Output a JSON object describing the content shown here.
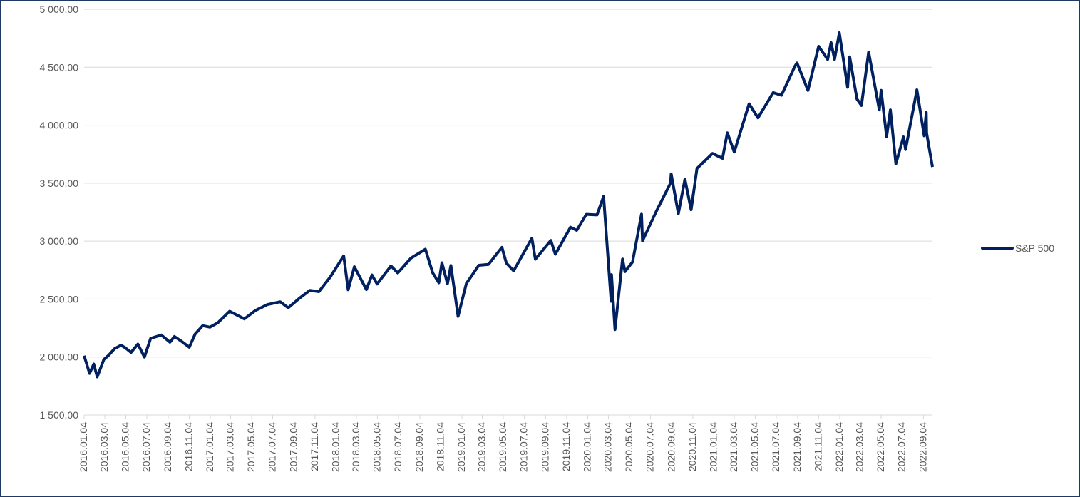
{
  "chart_data": {
    "type": "line",
    "x": [
      "2016.01.04",
      "2016.01.20",
      "2016.02.01",
      "2016.02.11",
      "2016.03.01",
      "2016.03.15",
      "2016.04.01",
      "2016.04.20",
      "2016.05.02",
      "2016.05.19",
      "2016.06.08",
      "2016.06.27",
      "2016.07.15",
      "2016.08.15",
      "2016.09.09",
      "2016.09.22",
      "2016.10.14",
      "2016.11.04",
      "2016.11.21",
      "2016.12.13",
      "2017.01.03",
      "2017.01.26",
      "2017.03.01",
      "2017.04.13",
      "2017.05.15",
      "2017.06.19",
      "2017.07.26",
      "2017.08.18",
      "2017.09.20",
      "2017.10.20",
      "2017.11.15",
      "2017.12.18",
      "2018.01.26",
      "2018.02.08",
      "2018.02.26",
      "2018.04.02",
      "2018.04.18",
      "2018.05.03",
      "2018.06.12",
      "2018.07.02",
      "2018.08.09",
      "2018.09.20",
      "2018.10.11",
      "2018.10.29",
      "2018.11.07",
      "2018.11.23",
      "2018.12.03",
      "2018.12.24",
      "2019.01.17",
      "2019.02.22",
      "2019.03.22",
      "2019.04.30",
      "2019.05.13",
      "2019.06.03",
      "2019.07.26",
      "2019.08.05",
      "2019.09.19",
      "2019.10.02",
      "2019.11.15",
      "2019.12.03",
      "2019.12.31",
      "2020.01.31",
      "2020.02.19",
      "2020.03.12",
      "2020.03.13",
      "2020.03.23",
      "2020.04.14",
      "2020.04.21",
      "2020.05.13",
      "2020.06.08",
      "2020.06.11",
      "2020.07.20",
      "2020.08.31",
      "2020.09.02",
      "2020.09.23",
      "2020.10.12",
      "2020.10.30",
      "2020.11.16",
      "2020.12.31",
      "2021.01.29",
      "2021.02.12",
      "2021.03.04",
      "2021.04.16",
      "2021.05.12",
      "2021.06.25",
      "2021.07.19",
      "2021.08.27",
      "2021.09.02",
      "2021.10.04",
      "2021.11.04",
      "2021.11.30",
      "2021.12.10",
      "2021.12.20",
      "2022.01.03",
      "2022.01.27",
      "2022.02.02",
      "2022.02.23",
      "2022.03.08",
      "2022.03.29",
      "2022.04.29",
      "2022.05.04",
      "2022.05.20",
      "2022.05.31",
      "2022.06.16",
      "2022.07.08",
      "2022.07.14",
      "2022.08.16",
      "2022.09.06",
      "2022.09.12",
      "2022.09.13",
      "2022.09.30"
    ],
    "series": [
      {
        "name": "S&P 500",
        "color": "#002060",
        "values": [
          2012,
          1859,
          1940,
          1829,
          1978,
          2015,
          2072,
          2102,
          2081,
          2040,
          2112,
          2000,
          2161,
          2190,
          2128,
          2177,
          2133,
          2085,
          2198,
          2271,
          2258,
          2296,
          2395,
          2329,
          2402,
          2453,
          2477,
          2425,
          2508,
          2575,
          2564,
          2690,
          2873,
          2581,
          2779,
          2582,
          2708,
          2630,
          2786,
          2726,
          2853,
          2930,
          2728,
          2641,
          2813,
          2633,
          2790,
          2351,
          2635,
          2792,
          2800,
          2946,
          2811,
          2744,
          3025,
          2844,
          3006,
          2887,
          3120,
          3093,
          3231,
          3226,
          3386,
          2481,
          2711,
          2237,
          2846,
          2737,
          2820,
          3232,
          3002,
          3251,
          3500,
          3580,
          3237,
          3534,
          3270,
          3627,
          3756,
          3714,
          3934,
          3768,
          4185,
          4063,
          4281,
          4258,
          4509,
          4537,
          4300,
          4680,
          4567,
          4712,
          4568,
          4797,
          4327,
          4590,
          4226,
          4170,
          4631,
          4132,
          4300,
          3901,
          4132,
          3667,
          3899,
          3790,
          4305,
          3909,
          4110,
          3932,
          3640
        ]
      }
    ],
    "xlim": [
      "2016.01.04",
      "2022.09.30"
    ],
    "xticks": [
      "2016.01.04",
      "2016.03.04",
      "2016.05.04",
      "2016.07.04",
      "2016.09.04",
      "2016.11.04",
      "2017.01.04",
      "2017.03.04",
      "2017.05.04",
      "2017.07.04",
      "2017.09.04",
      "2017.11.04",
      "2018.01.04",
      "2018.03.04",
      "2018.05.04",
      "2018.07.04",
      "2018.09.04",
      "2018.11.04",
      "2019.01.04",
      "2019.03.04",
      "2019.05.04",
      "2019.07.04",
      "2019.09.04",
      "2019.11.04",
      "2020.01.04",
      "2020.03.04",
      "2020.05.04",
      "2020.07.04",
      "2020.09.04",
      "2020.11.04",
      "2021.01.04",
      "2021.03.04",
      "2021.05.04",
      "2021.07.04",
      "2021.09.04",
      "2021.11.04",
      "2022.01.04",
      "2022.03.04",
      "2022.05.04",
      "2022.07.04",
      "2022.09.04"
    ],
    "ylim": [
      1500,
      5000
    ],
    "yticks": [
      {
        "value": 1500,
        "label": "1 500,00"
      },
      {
        "value": 2000,
        "label": "2 000,00"
      },
      {
        "value": 2500,
        "label": "2 500,00"
      },
      {
        "value": 3000,
        "label": "3 000,00"
      },
      {
        "value": 3500,
        "label": "3 500,00"
      },
      {
        "value": 4000,
        "label": "4 000,00"
      },
      {
        "value": 4500,
        "label": "4 500,00"
      },
      {
        "value": 5000,
        "label": "5 000,00"
      }
    ],
    "grid": true,
    "legend": "right"
  }
}
